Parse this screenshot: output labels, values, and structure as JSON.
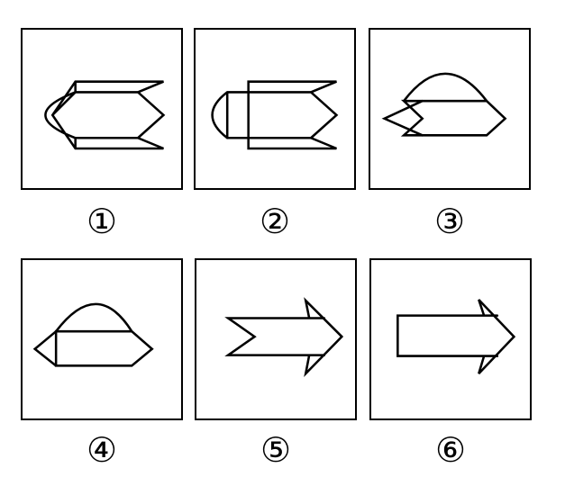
{
  "labels": [
    "①",
    "②",
    "③",
    "④",
    "⑤",
    "⑥"
  ],
  "figures": [
    {
      "id": 1,
      "shape": "chevron-arrow-with-arc-and-fins"
    },
    {
      "id": 2,
      "shape": "rectangle-arrow-with-arc-and-fins"
    },
    {
      "id": 3,
      "shape": "dome-over-chevron-arrow"
    },
    {
      "id": 4,
      "shape": "dome-over-rectangle-arrow"
    },
    {
      "id": 5,
      "shape": "chevron-arrow"
    },
    {
      "id": 6,
      "shape": "rectangle-arrow"
    }
  ],
  "colors": {
    "stroke": "#000000",
    "background": "#ffffff"
  }
}
